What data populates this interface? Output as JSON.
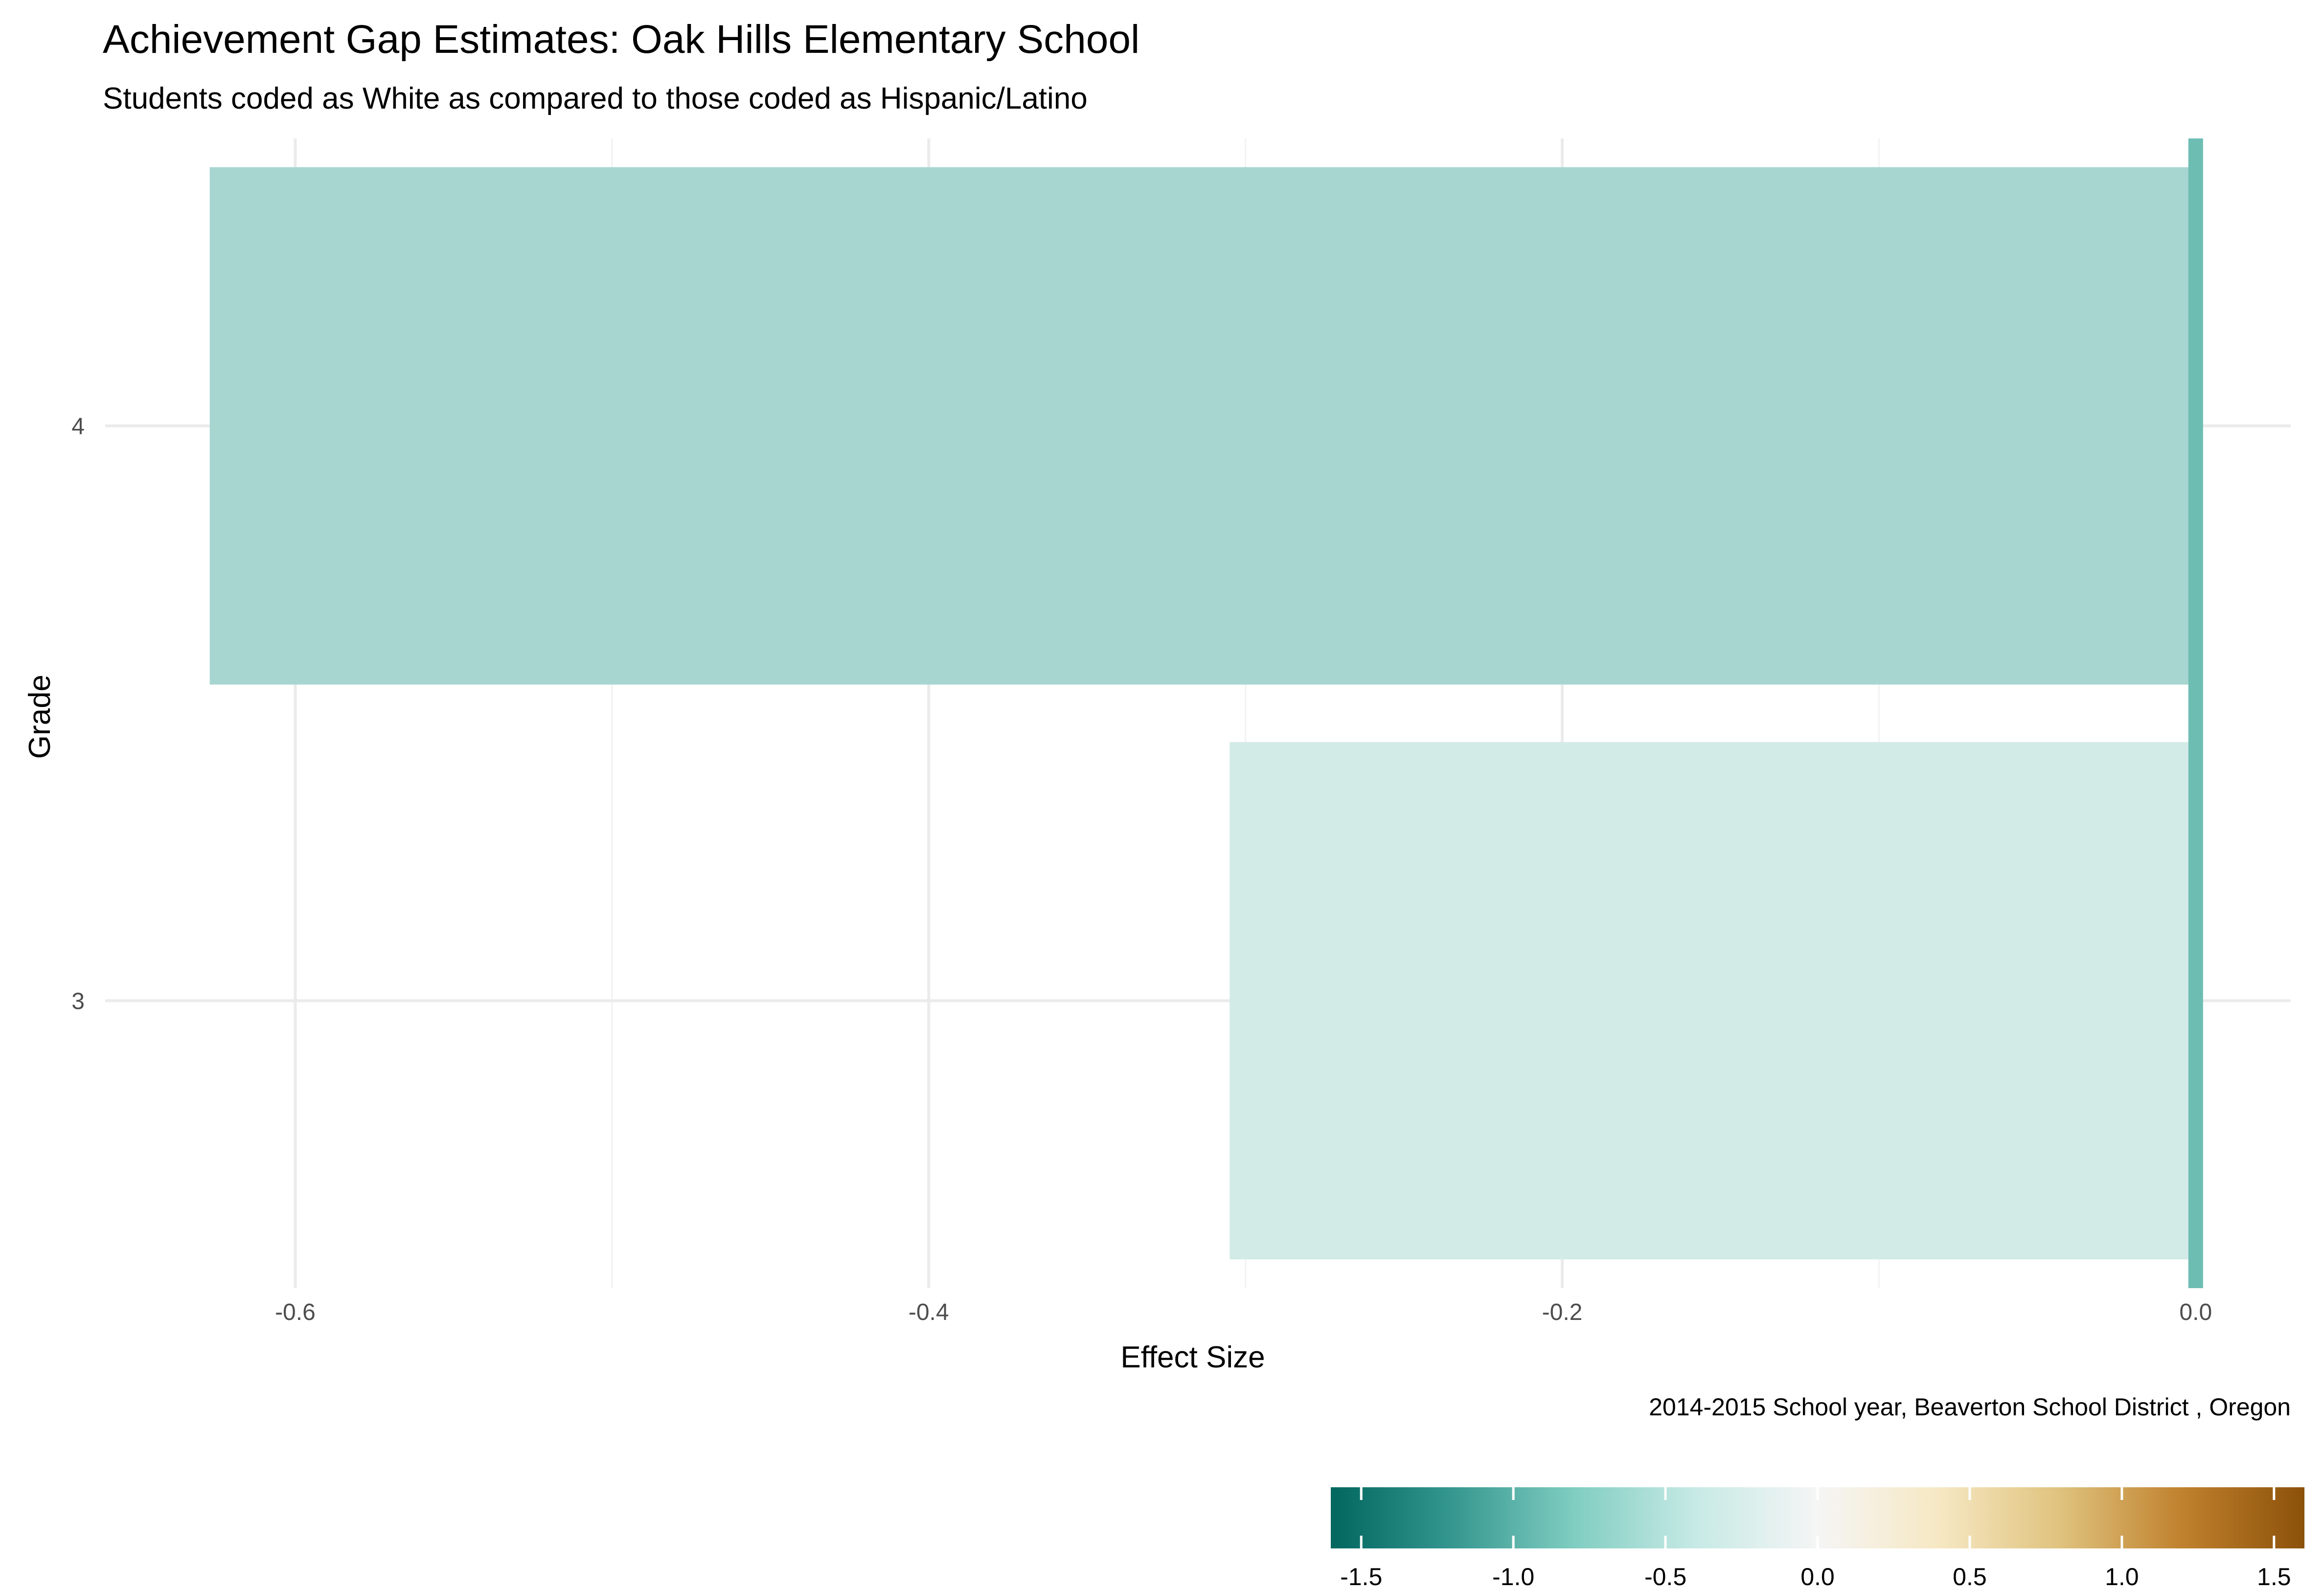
{
  "chart_data": {
    "type": "bar",
    "orientation": "horizontal",
    "title": "Achievement Gap Estimates: Oak Hills Elementary School",
    "subtitle": "Students coded as White as compared to those coded as Hispanic/Latino",
    "xlabel": "Effect Size",
    "ylabel": "Grade",
    "caption": "2014-2015 School year,  Beaverton School District , Oregon",
    "categories": [
      "3",
      "4"
    ],
    "values": [
      -0.305,
      -0.627
    ],
    "bar_colors": [
      "#d3ebe7",
      "#a7d6d1"
    ],
    "reference_line": {
      "value": 0.0,
      "color": "#6ebdb3"
    },
    "xlim": [
      -0.66,
      0.03
    ],
    "x_ticks": [
      -0.6,
      -0.4,
      -0.2,
      0.0
    ],
    "x_tick_labels": [
      "-0.6",
      "-0.4",
      "-0.2",
      "0.0"
    ],
    "grid": true,
    "legend": {
      "type": "colorbar",
      "placement": "bottom-right",
      "limits": [
        -1.6,
        1.6
      ],
      "ticks": [
        -1.5,
        -1.0,
        -0.5,
        0.0,
        0.5,
        1.0,
        1.5
      ],
      "tick_labels": [
        "-1.5",
        "-1.0",
        "-0.5",
        "0.0",
        "0.5",
        "1.0",
        "1.5"
      ],
      "colors": [
        "#01665e",
        "#35978f",
        "#80cdc1",
        "#c7eae5",
        "#f5f5f5",
        "#f6e8c3",
        "#dfc27d",
        "#bf812d",
        "#8c510a"
      ]
    }
  }
}
